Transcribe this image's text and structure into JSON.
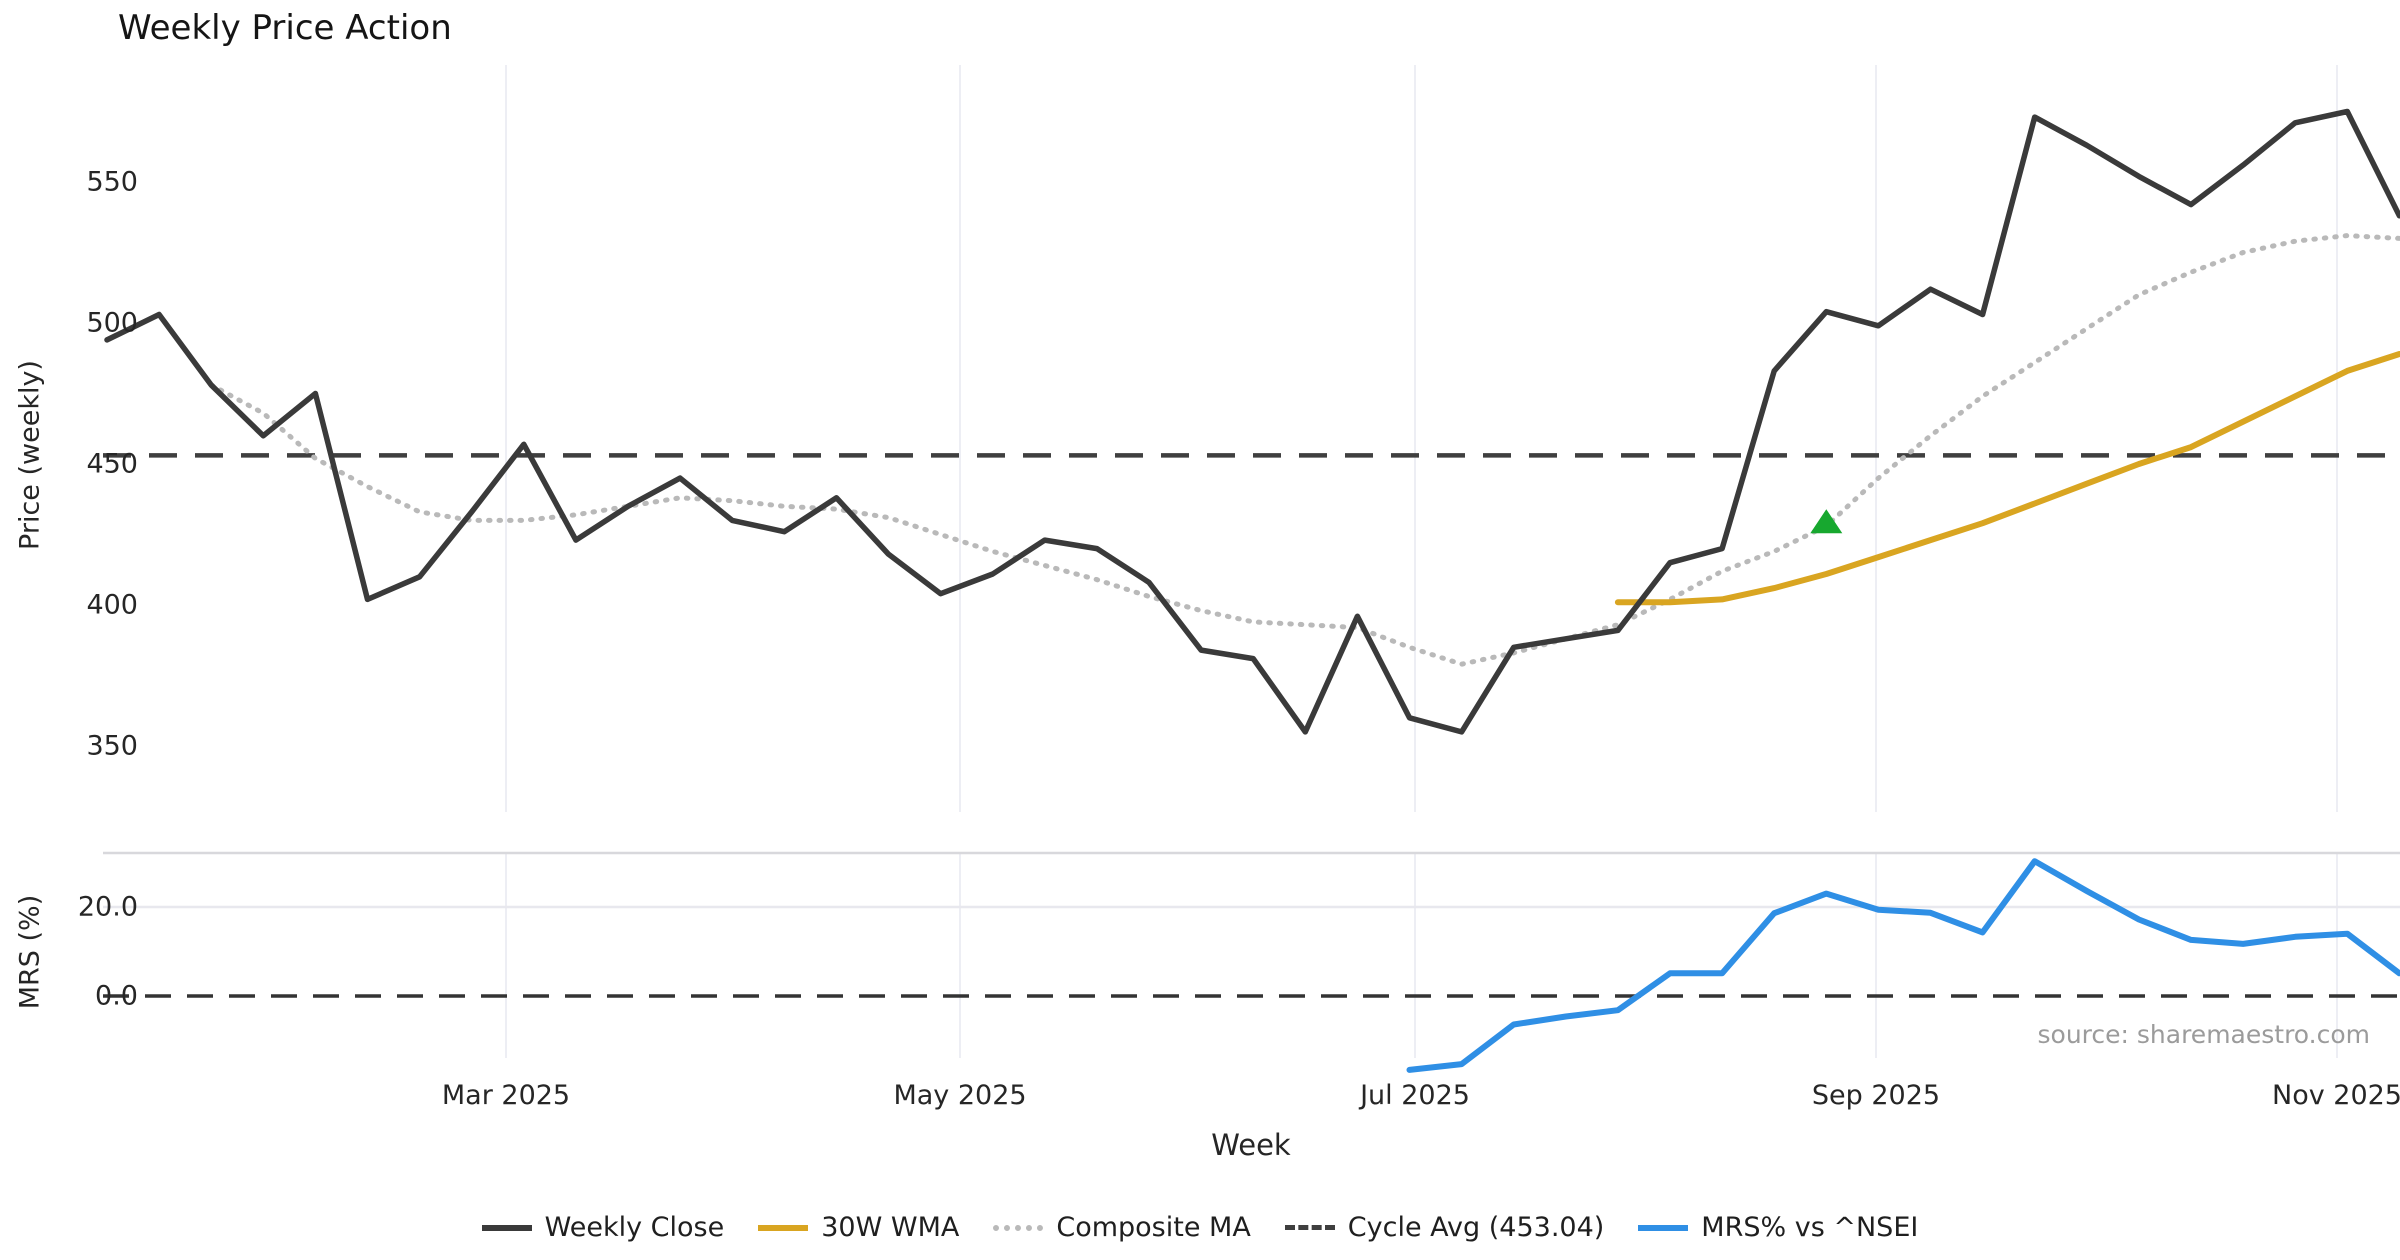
{
  "title": "Weekly Price Action",
  "xlabel": "Week",
  "source": "source: sharemaestro.com",
  "price_axis": {
    "label": "Price (weekly)",
    "ticks": [
      "550",
      "500",
      "450",
      "400",
      "350"
    ]
  },
  "mrs_axis": {
    "label": "MRS (%)",
    "ticks": [
      "20.0",
      "0.0"
    ]
  },
  "x_ticks": [
    "Mar 2025",
    "May 2025",
    "Jul 2025",
    "Sep 2025",
    "Nov 2025"
  ],
  "legend": [
    {
      "label": "Weekly Close",
      "style": "solid",
      "color": "#3a3a3a"
    },
    {
      "label": "30W WMA",
      "style": "solid",
      "color": "#d9a521"
    },
    {
      "label": "Composite MA",
      "style": "dotted",
      "color": "#b9b9b9"
    },
    {
      "label": "Cycle Avg (453.04)",
      "style": "dashed",
      "color": "#3f3f3f"
    },
    {
      "label": "MRS% vs ^NSEI",
      "style": "solid",
      "color": "#2f8fe5"
    }
  ],
  "colors": {
    "close": "#3a3a3a",
    "wma": "#d9a521",
    "composite": "#b9b9b9",
    "cycle_avg": "#3f3f3f",
    "mrs": "#2f8fe5",
    "signal": "#17a82f",
    "grid": "#edeef4",
    "mrs_grid": "#e8e8ee",
    "separator": "#d8d8dc",
    "zero_dash": "#333333"
  },
  "chart_data": {
    "type": "line",
    "title": "Weekly Price Action",
    "xlabel": "Week",
    "x_unit": "week-index",
    "x_tick_labels": [
      "Mar 2025",
      "May 2025",
      "Jul 2025",
      "Sep 2025",
      "Nov 2025"
    ],
    "price_ylim": [
      337,
      592
    ],
    "mrs_ylim": [
      -20,
      33
    ],
    "grid": "vertical-months-only",
    "legend_position": "bottom-center",
    "cycle_avg_value": 453.04,
    "series": [
      {
        "name": "Weekly Close",
        "panel": "price",
        "start_week": 0,
        "values": [
          494,
          503,
          478,
          460,
          475,
          402,
          410,
          433,
          457,
          423,
          435,
          445,
          430,
          426,
          438,
          418,
          404,
          411,
          423,
          420,
          408,
          384,
          381,
          355,
          396,
          360,
          355,
          385,
          388,
          391,
          415,
          420,
          483,
          504,
          499,
          512,
          503,
          573,
          563,
          552,
          542,
          556,
          571,
          575,
          538
        ]
      },
      {
        "name": "30W WMA",
        "panel": "price",
        "start_week": 29,
        "values": [
          401,
          401,
          402,
          406,
          411,
          417,
          423,
          429,
          436,
          443,
          450,
          456,
          465,
          474,
          483,
          489
        ]
      },
      {
        "name": "Composite MA",
        "panel": "price",
        "start_week": 2,
        "values": [
          478,
          468,
          452,
          442,
          433,
          430,
          430,
          432,
          435,
          438,
          437,
          435,
          434,
          431,
          425,
          419,
          414,
          409,
          403,
          398,
          394,
          393,
          392,
          385,
          379,
          383,
          388,
          393,
          402,
          412,
          419,
          428,
          445,
          460,
          474,
          486,
          498,
          510,
          518,
          525,
          529,
          531,
          530
        ]
      },
      {
        "name": "Cycle Avg (453.04)",
        "panel": "price",
        "type": "hline",
        "value": 453.04
      },
      {
        "name": "MRS% vs ^NSEI",
        "panel": "mrs",
        "start_week": 25,
        "values": [
          -16.6,
          -15.3,
          -6.4,
          -4.6,
          -3.2,
          5.1,
          5.1,
          18.6,
          23.0,
          19.4,
          18.7,
          14.3,
          30.3,
          23.6,
          17.2,
          12.6,
          11.7,
          13.3,
          14.0,
          5.1
        ]
      }
    ],
    "signal_marker": {
      "shape": "triangle-up",
      "color": "#17a82f",
      "week": 33,
      "price": 429
    }
  }
}
